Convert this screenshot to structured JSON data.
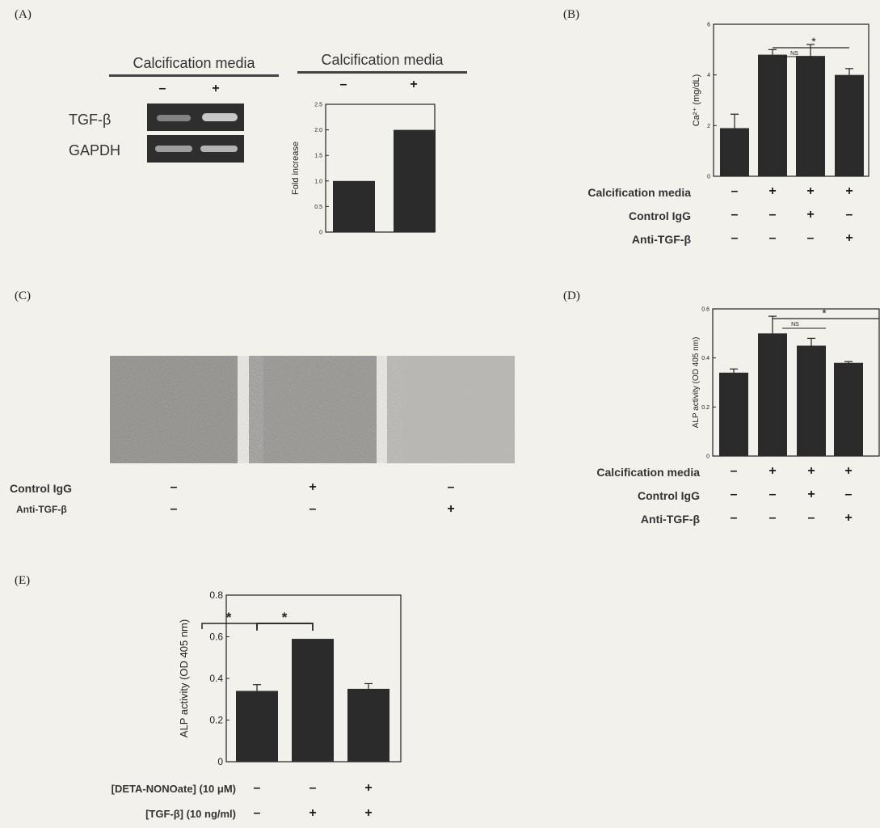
{
  "panels": [
    "(A)",
    "(B)",
    "(C)",
    "(D)",
    "(E)"
  ],
  "panelA": {
    "gel_header": "Calcification media",
    "gel_signs": [
      "–",
      "+"
    ],
    "gel_rows": [
      "TGF-β",
      "GAPDH"
    ],
    "chart_header": "Calcification media",
    "chart_signs": [
      "–",
      "+"
    ]
  },
  "panelB": {
    "rows": [
      {
        "label": "Calcification media",
        "signs": [
          "–",
          "+",
          "+",
          "+"
        ]
      },
      {
        "label": "Control IgG",
        "signs": [
          "–",
          "–",
          "+",
          "–"
        ]
      },
      {
        "label": "Anti-TGF-β",
        "signs": [
          "–",
          "–",
          "–",
          "+"
        ]
      }
    ],
    "ns": "NS",
    "star": "*"
  },
  "panelC": {
    "rows": [
      {
        "label": "Control IgG",
        "signs": [
          "–",
          "+",
          "–"
        ]
      },
      {
        "label": "Anti-TGF-β",
        "signs": [
          "–",
          "–",
          "+"
        ]
      }
    ]
  },
  "panelD": {
    "rows": [
      {
        "label": "Calcification media",
        "signs": [
          "–",
          "+",
          "+",
          "+"
        ]
      },
      {
        "label": "Control IgG",
        "signs": [
          "–",
          "–",
          "+",
          "–"
        ]
      },
      {
        "label": "Anti-TGF-β",
        "signs": [
          "–",
          "–",
          "–",
          "+"
        ]
      }
    ],
    "ns": "NS",
    "star": "*"
  },
  "panelE": {
    "rows": [
      {
        "label": "[DETA-NONOate] (10 μM)",
        "signs": [
          "–",
          "–",
          "+"
        ]
      },
      {
        "label": "[TGF-β] (10 ng/ml)",
        "signs": [
          "–",
          "+",
          "+"
        ]
      }
    ],
    "star": "*"
  },
  "chart_data": [
    {
      "id": "A",
      "type": "bar",
      "categories": [
        "–",
        "+"
      ],
      "values": [
        1.0,
        2.0
      ],
      "ylabel": "Fold increase",
      "ylim": [
        0,
        2.5
      ],
      "yticks": [
        0,
        0.5,
        1.0,
        1.5,
        2.0,
        2.5
      ],
      "ytick_labels": [
        "0",
        "0.5",
        "1.0",
        "1.5",
        "2.0",
        "2.5"
      ],
      "color": "#2b2b2b"
    },
    {
      "id": "B",
      "type": "bar",
      "values": [
        1.9,
        4.8,
        4.75,
        4.0
      ],
      "errors": [
        0.55,
        0.2,
        0.45,
        0.25
      ],
      "ylabel": "Ca²⁺ (mg/dL)",
      "ylim": [
        0,
        6
      ],
      "yticks": [
        0,
        2,
        4,
        6
      ],
      "ytick_labels": [
        "0",
        "2",
        "4",
        "6"
      ],
      "color": "#2b2b2b"
    },
    {
      "id": "D",
      "type": "bar",
      "values": [
        0.34,
        0.5,
        0.45,
        0.38
      ],
      "errors": [
        0.015,
        0.07,
        0.03,
        0.005
      ],
      "ylabel": "ALP activity (OD 405 nm)",
      "ylim": [
        0,
        0.6
      ],
      "yticks": [
        0,
        0.2,
        0.4,
        0.6
      ],
      "ytick_labels": [
        "0",
        "0.2",
        "0.4",
        "0.6"
      ],
      "color": "#2b2b2b"
    },
    {
      "id": "E",
      "type": "bar",
      "values": [
        0.34,
        0.59,
        0.35
      ],
      "errors": [
        0.03,
        0.0,
        0.025
      ],
      "ylabel": "ALP activity (OD 405 nm)",
      "ylim": [
        0,
        0.8
      ],
      "yticks": [
        0,
        0.2,
        0.4,
        0.6,
        0.8
      ],
      "ytick_labels": [
        "0",
        "0.2",
        "0.4",
        "0.6",
        "0.8"
      ],
      "color": "#2b2b2b"
    }
  ]
}
